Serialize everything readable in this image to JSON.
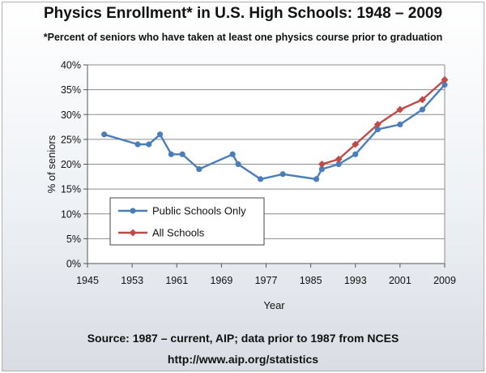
{
  "header": {
    "title": "Physics Enrollment* in U.S. High Schools: 1948 – 2009",
    "subtitle": "*Percent of seniors who have taken at least one physics course prior to graduation"
  },
  "footer": {
    "source": "Source: 1987 – current, AIP; data prior to 1987 from NCES",
    "url": "http://www.aip.org/statistics"
  },
  "chart_data": {
    "type": "line",
    "title": "Physics Enrollment* in U.S. High Schools: 1948 – 2009",
    "xlabel": "Year",
    "ylabel": "% of seniors",
    "xlim": [
      1945,
      2009
    ],
    "ylim": [
      0,
      40
    ],
    "x_ticks": [
      1945,
      1953,
      1961,
      1969,
      1977,
      1985,
      1993,
      2001,
      2009
    ],
    "y_ticks": [
      0,
      5,
      10,
      15,
      20,
      25,
      30,
      35,
      40
    ],
    "y_tick_suffix": "%",
    "grid": "horizontal",
    "legend_position": "bottom-left",
    "series": [
      {
        "name": "Public Schools Only",
        "color": "#4a7ebb",
        "marker": "circle",
        "points": [
          [
            1948,
            26
          ],
          [
            1954,
            24
          ],
          [
            1956,
            24
          ],
          [
            1958,
            26
          ],
          [
            1960,
            22
          ],
          [
            1962,
            22
          ],
          [
            1965,
            19
          ],
          [
            1971,
            22
          ],
          [
            1972,
            20
          ],
          [
            1976,
            17
          ],
          [
            1980,
            18
          ],
          [
            1986,
            17
          ],
          [
            1987,
            19
          ],
          [
            1990,
            20
          ],
          [
            1993,
            22
          ],
          [
            1997,
            27
          ],
          [
            2001,
            28
          ],
          [
            2005,
            31
          ],
          [
            2009,
            36
          ]
        ]
      },
      {
        "name": "All Schools",
        "color": "#be4b48",
        "marker": "diamond",
        "points": [
          [
            1987,
            20
          ],
          [
            1990,
            21
          ],
          [
            1993,
            24
          ],
          [
            1997,
            28
          ],
          [
            2001,
            31
          ],
          [
            2005,
            33
          ],
          [
            2009,
            37
          ]
        ]
      }
    ]
  }
}
